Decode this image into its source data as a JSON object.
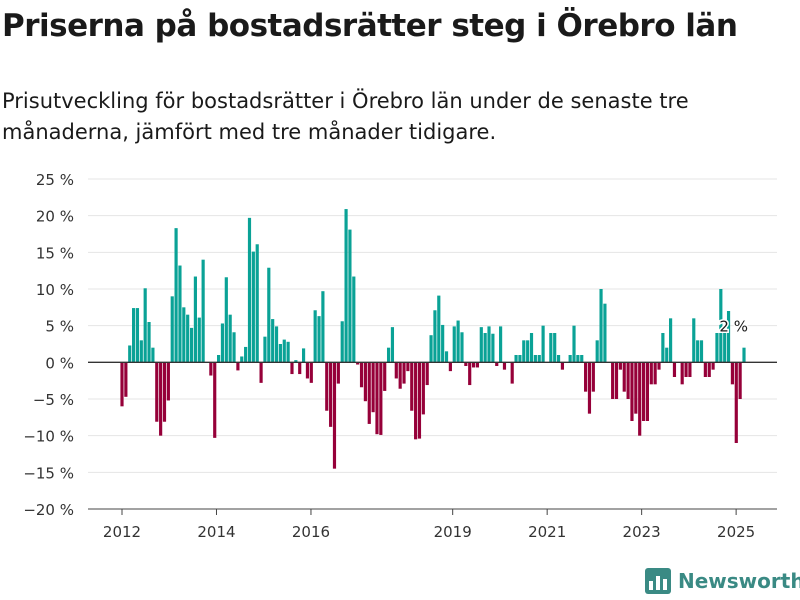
{
  "header": {
    "title": "Priserna på bostadsrätter steg i Örebro län",
    "subtitle": "Prisutveckling för bostadsrätter i Örebro län under de senaste tre månaderna, jämfört med tre månader tidigare."
  },
  "footer": {
    "brand": "Newsworthy"
  },
  "colors": {
    "positive": "#0aa296",
    "negative": "#960039",
    "grid": "#e4e4e4",
    "zero_line": "#333333",
    "brand": "#3a8a84"
  },
  "chart_data": {
    "type": "bar",
    "title": "",
    "xlabel": "",
    "ylabel": "",
    "ylim": [
      -20,
      25
    ],
    "y_ticks": [
      25,
      20,
      15,
      10,
      5,
      0,
      -5,
      -10,
      -15,
      -20
    ],
    "y_tick_labels": [
      "25 %",
      "20 %",
      "15 %",
      "10 %",
      "5 %",
      "0 %",
      "−5 %",
      "−10 %",
      "−15 %",
      "−20 %"
    ],
    "x_ticks": [
      2012,
      2014,
      2016,
      2019,
      2021,
      2023,
      2025
    ],
    "x_tick_labels": [
      "2012",
      "2014",
      "2016",
      "2019",
      "2021",
      "2023",
      "2025"
    ],
    "grid": true,
    "start": "2012-01",
    "end": "2025-03",
    "values": [
      -6,
      -4.7,
      2.3,
      7.4,
      7.4,
      3,
      10.1,
      5.5,
      2,
      -8.1,
      -10,
      -8.1,
      -5.2,
      9,
      18.3,
      13.2,
      7.5,
      6.5,
      4.7,
      11.7,
      6.1,
      14,
      0,
      -1.8,
      -10.3,
      1,
      5.3,
      11.6,
      6.5,
      4.1,
      -1.1,
      0.8,
      2.1,
      19.7,
      15.1,
      16.1,
      -2.8,
      3.5,
      12.9,
      5.9,
      4.9,
      2.5,
      3.1,
      2.8,
      -1.6,
      0.3,
      -1.6,
      1.9,
      -2.2,
      -2.8,
      7.1,
      6.3,
      9.7,
      -6.6,
      -8.8,
      -14.5,
      -2.9,
      5.6,
      20.9,
      18.1,
      11.7,
      -0.3,
      -3.4,
      -5.3,
      -8.4,
      -6.8,
      -9.8,
      -9.9,
      -3.9,
      2,
      4.8,
      -2.2,
      -3.6,
      -2.9,
      -1.2,
      -6.6,
      -10.5,
      -10.4,
      -7.1,
      -3.1,
      3.7,
      7.1,
      9.1,
      5.1,
      1.5,
      -1.2,
      4.9,
      5.7,
      4.1,
      -0.5,
      -3.1,
      -0.7,
      -0.7,
      4.8,
      4,
      4.9,
      3.9,
      -0.5,
      4.9,
      -1,
      0,
      -2.9,
      1,
      1,
      3,
      3,
      4,
      1,
      1,
      5,
      0,
      4,
      4,
      1,
      -1,
      0,
      1,
      5,
      1,
      1,
      -4,
      -7,
      -4,
      3,
      10,
      8,
      0,
      -5,
      -5,
      -1,
      -4,
      -5,
      -8,
      -7,
      -10,
      -8,
      -8,
      -3,
      -3,
      -1,
      4,
      2,
      6,
      -2,
      0,
      -3,
      -2,
      -2,
      6,
      3,
      3,
      -2,
      -2,
      -1,
      4,
      10,
      4,
      7,
      -3,
      -11,
      -5,
      2
    ],
    "annotations": [
      {
        "text": "2 %",
        "x": "2025-03",
        "y": 2
      }
    ]
  }
}
